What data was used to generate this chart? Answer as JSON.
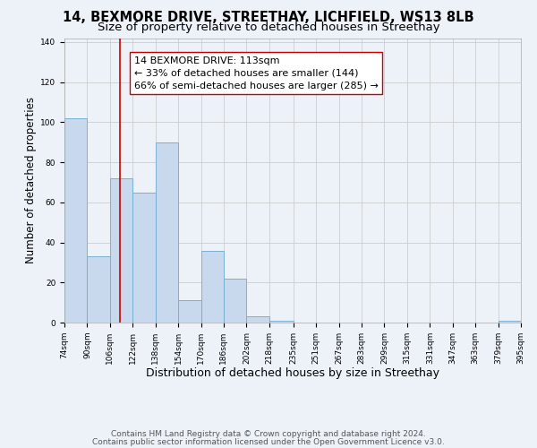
{
  "title": "14, BEXMORE DRIVE, STREETHAY, LICHFIELD, WS13 8LB",
  "subtitle": "Size of property relative to detached houses in Streethay",
  "xlabel": "Distribution of detached houses by size in Streethay",
  "ylabel": "Number of detached properties",
  "bin_edges": [
    74,
    90,
    106,
    122,
    138,
    154,
    170,
    186,
    202,
    218,
    235,
    251,
    267,
    283,
    299,
    315,
    331,
    347,
    363,
    379,
    395
  ],
  "bar_heights": [
    102,
    33,
    72,
    65,
    90,
    11,
    36,
    22,
    3,
    1,
    0,
    0,
    0,
    0,
    0,
    0,
    0,
    0,
    0,
    1
  ],
  "bar_color": "#c8d9ee",
  "bar_edge_color": "#7aafd4",
  "property_line_x": 113,
  "property_line_color": "#cc0000",
  "annotation_line1": "14 BEXMORE DRIVE: 113sqm",
  "annotation_line2": "← 33% of detached houses are smaller (144)",
  "annotation_line3": "66% of semi-detached houses are larger (285) →",
  "ylim": [
    0,
    142
  ],
  "yticks": [
    0,
    20,
    40,
    60,
    80,
    100,
    120,
    140
  ],
  "grid_color": "#cccccc",
  "bg_color": "#edf2f9",
  "footnote1": "Contains HM Land Registry data © Crown copyright and database right 2024.",
  "footnote2": "Contains public sector information licensed under the Open Government Licence v3.0.",
  "title_fontsize": 10.5,
  "subtitle_fontsize": 9.5,
  "xlabel_fontsize": 9,
  "ylabel_fontsize": 8.5,
  "annotation_fontsize": 8,
  "tick_fontsize": 6.5,
  "footnote_fontsize": 6.5
}
